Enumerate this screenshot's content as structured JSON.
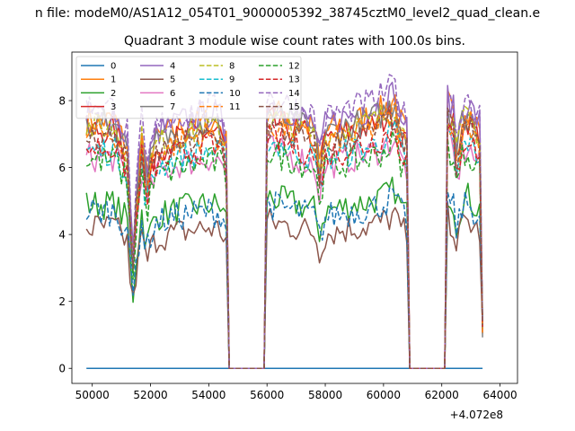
{
  "chart_data": {
    "type": "line",
    "suptitle": "n file: modeM0/AS1A12_054T01_9000005392_38745cztM0_level2_quad_clean.e",
    "title": "Quadrant 3 module wise count rates with 100.0s bins.",
    "xlabel": "",
    "ylabel": "",
    "x_offset_label": "+4.072e8",
    "xlim": [
      49300,
      64600
    ],
    "ylim": [
      -0.45,
      9.45
    ],
    "xticks": [
      50000,
      52000,
      54000,
      56000,
      58000,
      60000,
      62000,
      64000
    ],
    "yticks": [
      0,
      2,
      4,
      6,
      8
    ],
    "legend_loc": "upper left",
    "legend_ncol": 4,
    "segments": [
      {
        "x": [
          49800,
          50800,
          51000,
          51200,
          51300,
          51400,
          51500,
          51700,
          51800,
          51900,
          52000,
          52200,
          52400,
          53000,
          54000,
          54400,
          54500,
          54600
        ],
        "shape": [
          0,
          0,
          -0.4,
          -0.6,
          -2.3,
          -3.6,
          -2.2,
          -0.3,
          -1.2,
          -1.5,
          -1.0,
          -0.5,
          -0.4,
          -0.2,
          0,
          -0.1,
          -0.3,
          -0.6
        ]
      },
      {
        "x": [
          54700,
          55900
        ],
        "zero": true
      },
      {
        "x": [
          56000,
          57000,
          57600,
          57700,
          57800,
          57900,
          58000,
          58200,
          59000,
          59500,
          60000,
          60400,
          60500,
          60700,
          60800
        ],
        "shape": [
          0.3,
          0,
          -0.2,
          -0.6,
          -1.1,
          -0.7,
          -0.3,
          -0.2,
          0,
          0.1,
          0.3,
          0.6,
          0.1,
          -0.2,
          -0.4
        ]
      },
      {
        "x": [
          60900,
          62100
        ],
        "zero": true
      },
      {
        "x": [
          62200,
          62400,
          62500,
          62700,
          62900,
          63100,
          63300
        ],
        "shape": [
          0.5,
          0.1,
          -0.8,
          0.1,
          0.3,
          0,
          -0.2
        ]
      },
      {
        "x": [
          63400
        ],
        "shape": [
          -4.8
        ]
      }
    ],
    "series": [
      {
        "name": "0",
        "color": "#1f77b4",
        "dash": "solid",
        "flat_zero": true
      },
      {
        "name": "1",
        "color": "#ff7f0e",
        "dash": "solid",
        "level": 7.4
      },
      {
        "name": "2",
        "color": "#2ca02c",
        "dash": "solid",
        "level": 4.9
      },
      {
        "name": "3",
        "color": "#d62728",
        "dash": "solid",
        "level": 7.1
      },
      {
        "name": "4",
        "color": "#9467bd",
        "dash": "solid",
        "level": 7.6
      },
      {
        "name": "5",
        "color": "#8c564b",
        "dash": "solid",
        "level": 4.2
      },
      {
        "name": "6",
        "color": "#e377c2",
        "dash": "solid",
        "level": 6.3
      },
      {
        "name": "7",
        "color": "#7f7f7f",
        "dash": "solid",
        "level": 7.3
      },
      {
        "name": "8",
        "color": "#bcbd22",
        "dash": "dashed",
        "level": 7.2
      },
      {
        "name": "9",
        "color": "#17becf",
        "dash": "dashed",
        "level": 6.5
      },
      {
        "name": "10",
        "color": "#1f77b4",
        "dash": "dashed",
        "level": 4.7
      },
      {
        "name": "11",
        "color": "#ff7f0e",
        "dash": "dashed",
        "level": 7.0
      },
      {
        "name": "12",
        "color": "#2ca02c",
        "dash": "dashed",
        "level": 6.2
      },
      {
        "name": "13",
        "color": "#d62728",
        "dash": "dashed",
        "level": 6.6
      },
      {
        "name": "14",
        "color": "#9467bd",
        "dash": "dashed",
        "level": 7.8
      },
      {
        "name": "15",
        "color": "#8c564b",
        "dash": "dashed",
        "level": 6.9
      }
    ]
  }
}
